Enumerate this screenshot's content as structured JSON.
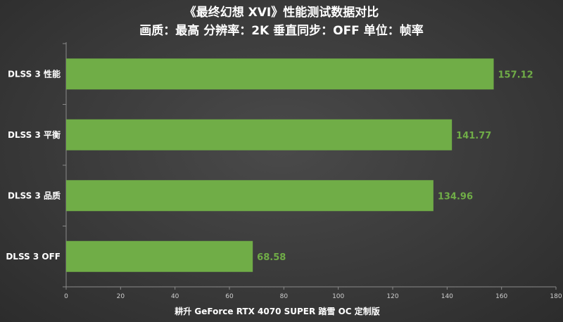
{
  "chart_data": {
    "type": "bar",
    "orientation": "horizontal",
    "title": "《最终幻想 XVI》性能测试数据对比",
    "subtitle": "画质：最高 分辨率：2K 垂直同步：OFF 单位：帧率",
    "categories": [
      "DLSS 3 性能",
      "DLSS 3 平衡",
      "DLSS 3 品质",
      "DLSS 3 OFF"
    ],
    "values": [
      157.12,
      141.77,
      134.96,
      68.58
    ],
    "value_labels": [
      "157.12",
      "141.77",
      "134.96",
      "68.58"
    ],
    "xlabel": "耕升 GeForce RTX 4070 SUPER 踏雪 OC 定制版",
    "ylabel": "",
    "xlim": [
      0,
      180
    ],
    "ticks": [
      "0",
      "20",
      "40",
      "60",
      "80",
      "100",
      "120",
      "140",
      "160",
      "180"
    ],
    "grid": false,
    "bar_color": "#70ad47",
    "value_label_color": "#70ad47"
  }
}
